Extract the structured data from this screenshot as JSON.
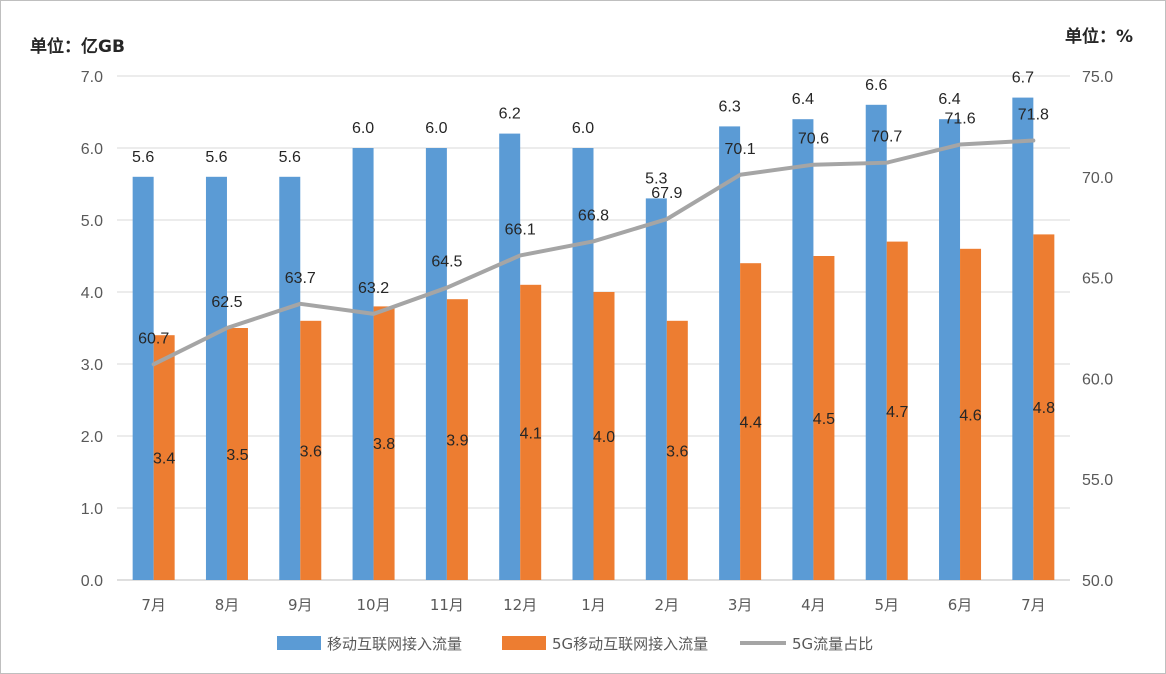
{
  "chart_data": {
    "type": "bar",
    "left_unit": "单位：亿GB",
    "right_unit": "单位：%",
    "categories": [
      "7月",
      "8月",
      "9月",
      "10月",
      "11月",
      "12月",
      "1月",
      "2月",
      "3月",
      "4月",
      "5月",
      "6月",
      "7月"
    ],
    "series": [
      {
        "name": "移动互联网接入流量",
        "type": "bar",
        "axis": "left",
        "color": "#5b9bd5",
        "values": [
          5.6,
          5.6,
          5.6,
          6.0,
          6.0,
          6.2,
          6.0,
          5.3,
          6.3,
          6.4,
          6.6,
          6.4,
          6.7
        ],
        "labels": [
          "5.6",
          "5.6",
          "5.6",
          "6.0",
          "6.0",
          "6.2",
          "6.0",
          "5.3",
          "6.3",
          "6.4",
          "6.6",
          "6.4",
          "6.7"
        ]
      },
      {
        "name": "5G移动互联网接入流量",
        "type": "bar",
        "axis": "left",
        "color": "#ed7d31",
        "values": [
          3.4,
          3.5,
          3.6,
          3.8,
          3.9,
          4.1,
          4.0,
          3.6,
          4.4,
          4.5,
          4.7,
          4.6,
          4.8
        ],
        "labels": [
          "3.4",
          "3.5",
          "3.6",
          "3.8",
          "3.9",
          "4.1",
          "4.0",
          "3.6",
          "4.4",
          "4.5",
          "4.7",
          "4.6",
          "4.8"
        ]
      },
      {
        "name": "5G流量占比",
        "type": "line",
        "axis": "right",
        "color": "#a5a5a5",
        "values": [
          60.7,
          62.5,
          63.7,
          63.2,
          64.5,
          66.1,
          66.8,
          67.9,
          70.1,
          70.6,
          70.7,
          71.6,
          71.8
        ],
        "labels": [
          "60.7",
          "62.5",
          "63.7",
          "63.2",
          "64.5",
          "66.1",
          "66.8",
          "67.9",
          "70.1",
          "70.6",
          "70.7",
          "71.6",
          "71.8"
        ]
      }
    ],
    "y_left": {
      "lim": [
        0,
        7
      ],
      "ticks": [
        0,
        1,
        2,
        3,
        4,
        5,
        6,
        7
      ],
      "tick_labels": [
        "0.0",
        "1.0",
        "2.0",
        "3.0",
        "4.0",
        "5.0",
        "6.0",
        "7.0"
      ]
    },
    "y_right": {
      "lim": [
        50,
        75
      ],
      "ticks": [
        50,
        55,
        60,
        65,
        70,
        75
      ],
      "tick_labels": [
        "50.0",
        "55.0",
        "60.0",
        "65.0",
        "70.0",
        "75.0"
      ]
    },
    "grid": true,
    "legend_position": "bottom"
  }
}
